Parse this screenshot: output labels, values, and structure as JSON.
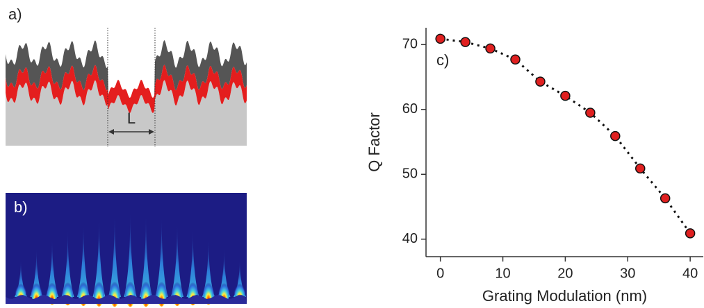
{
  "panels": {
    "a": {
      "label": "a)",
      "length_label": "L"
    },
    "b": {
      "label": "b)"
    }
  },
  "chart_data": {
    "type": "scatter",
    "panel_label": "c)",
    "x_label": "Grating Modulation (nm)",
    "y_label": "Q Factor",
    "x": [
      0,
      4,
      8,
      12,
      16,
      20,
      24,
      28,
      32,
      36,
      40
    ],
    "values": [
      70.9,
      70.4,
      69.4,
      67.7,
      64.3,
      62.1,
      59.5,
      55.9,
      50.9,
      46.3,
      40.9
    ],
    "color": "#e02020",
    "trend_line": "dotted",
    "xlim": [
      -2.3,
      42.1
    ],
    "ylim": [
      37.3,
      72.6
    ],
    "xticks": [
      0,
      10,
      20,
      30,
      40
    ],
    "yticks": [
      40,
      50,
      60,
      70
    ]
  }
}
